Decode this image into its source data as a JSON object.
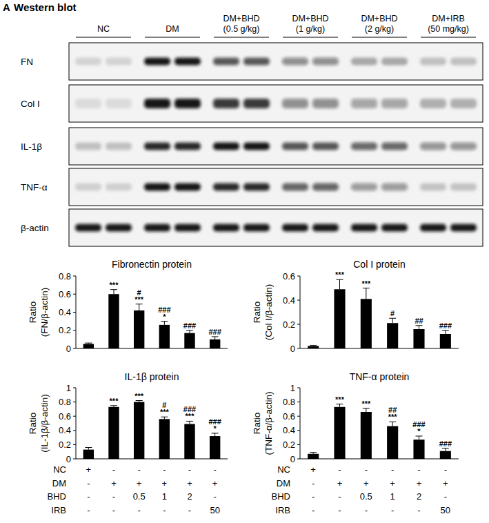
{
  "panel": {
    "label": "A",
    "title": "Western blot"
  },
  "blot": {
    "groups": [
      [
        "NC"
      ],
      [
        "DM"
      ],
      [
        "DM+BHD",
        "(0.5 g/kg)"
      ],
      [
        "DM+BHD",
        "(1 g/kg)"
      ],
      [
        "DM+BHD",
        "(2 g/kg)"
      ],
      [
        "DM+IRB",
        "(50 mg/kg)"
      ]
    ],
    "rows": [
      "FN",
      "Col I",
      "IL-1β",
      "TNF-α",
      "β-actin"
    ]
  },
  "chart_data": [
    {
      "type": "bar",
      "title": "Fibronectin protein",
      "y_label": [
        "Ratio",
        "(FN/β-actin)"
      ],
      "categories": [
        null,
        null,
        null,
        null,
        null,
        null
      ],
      "values": [
        0.05,
        0.6,
        0.42,
        0.26,
        0.17,
        0.1
      ],
      "errors": [
        0.01,
        0.05,
        0.07,
        0.04,
        0.03,
        0.03
      ],
      "annotations": [
        [],
        [
          "***"
        ],
        [
          "#",
          "***"
        ],
        [
          "###",
          "*"
        ],
        [
          "###"
        ],
        [
          "###"
        ]
      ],
      "color": "#000000",
      "ylim": [
        0,
        0.8
      ],
      "yticks": [
        0,
        0.2,
        0.4,
        0.6,
        0.8
      ],
      "grid": false
    },
    {
      "type": "bar",
      "title": "Col I protein",
      "y_label": [
        "Ratio",
        "(Col I/β-actin)"
      ],
      "categories": [
        null,
        null,
        null,
        null,
        null,
        null
      ],
      "values": [
        0.02,
        0.49,
        0.41,
        0.21,
        0.16,
        0.12
      ],
      "errors": [
        0.005,
        0.08,
        0.09,
        0.04,
        0.03,
        0.03
      ],
      "annotations": [
        [],
        [
          "***"
        ],
        [
          "***"
        ],
        [
          "#"
        ],
        [
          "##"
        ],
        [
          "###"
        ]
      ],
      "color": "#000000",
      "ylim": [
        0,
        0.6
      ],
      "yticks": [
        0,
        0.2,
        0.4,
        0.6
      ],
      "grid": false
    },
    {
      "type": "bar",
      "title": "IL-1β protein",
      "y_label": [
        "Ratio",
        "(IL-1β/β-actin)"
      ],
      "categories": [
        null,
        null,
        null,
        null,
        null,
        null
      ],
      "values": [
        0.13,
        0.73,
        0.8,
        0.56,
        0.49,
        0.32
      ],
      "errors": [
        0.03,
        0.02,
        0.02,
        0.03,
        0.04,
        0.04
      ],
      "annotations": [
        [],
        [
          "***"
        ],
        [
          "***"
        ],
        [
          "#",
          "***"
        ],
        [
          "###",
          "***"
        ],
        [
          "###",
          "*"
        ]
      ],
      "color": "#000000",
      "ylim": [
        0,
        1
      ],
      "yticks": [
        0,
        0.2,
        0.4,
        0.6,
        0.8,
        1
      ],
      "grid": false
    },
    {
      "type": "bar",
      "title": "TNF-α protein",
      "y_label": [
        "Ratio",
        "(TNF-α/β-actin)"
      ],
      "categories": [
        null,
        null,
        null,
        null,
        null,
        null
      ],
      "values": [
        0.07,
        0.73,
        0.66,
        0.46,
        0.27,
        0.11
      ],
      "errors": [
        0.02,
        0.04,
        0.05,
        0.06,
        0.05,
        0.04
      ],
      "annotations": [
        [],
        [
          "***"
        ],
        [
          "***"
        ],
        [
          "##",
          "***"
        ],
        [
          "###",
          "*"
        ],
        [
          "###"
        ]
      ],
      "color": "#000000",
      "ylim": [
        0,
        1
      ],
      "yticks": [
        0,
        0.2,
        0.4,
        0.6,
        0.8,
        1
      ],
      "grid": false
    }
  ],
  "treatment_tables": [
    {
      "rows": [
        {
          "label": "NC",
          "cells": [
            "+",
            "-",
            "-",
            "-",
            "-",
            "-"
          ]
        },
        {
          "label": "DM",
          "cells": [
            "-",
            "+",
            "+",
            "+",
            "+",
            "+"
          ]
        },
        {
          "label": "BHD",
          "cells": [
            "-",
            "-",
            "0.5",
            "1",
            "2",
            "-"
          ]
        },
        {
          "label": "IRB",
          "cells": [
            "-",
            "-",
            "-",
            "-",
            "-",
            "50"
          ]
        }
      ]
    },
    {
      "rows": [
        {
          "label": "NC",
          "cells": [
            "+",
            "-",
            "-",
            "-",
            "-",
            "-"
          ]
        },
        {
          "label": "DM",
          "cells": [
            "-",
            "+",
            "+",
            "+",
            "+",
            "+"
          ]
        },
        {
          "label": "BHD",
          "cells": [
            "-",
            "-",
            "0.5",
            "1",
            "2",
            "-"
          ]
        },
        {
          "label": "IRB",
          "cells": [
            "-",
            "-",
            "-",
            "-",
            "-",
            "50"
          ]
        }
      ]
    }
  ]
}
